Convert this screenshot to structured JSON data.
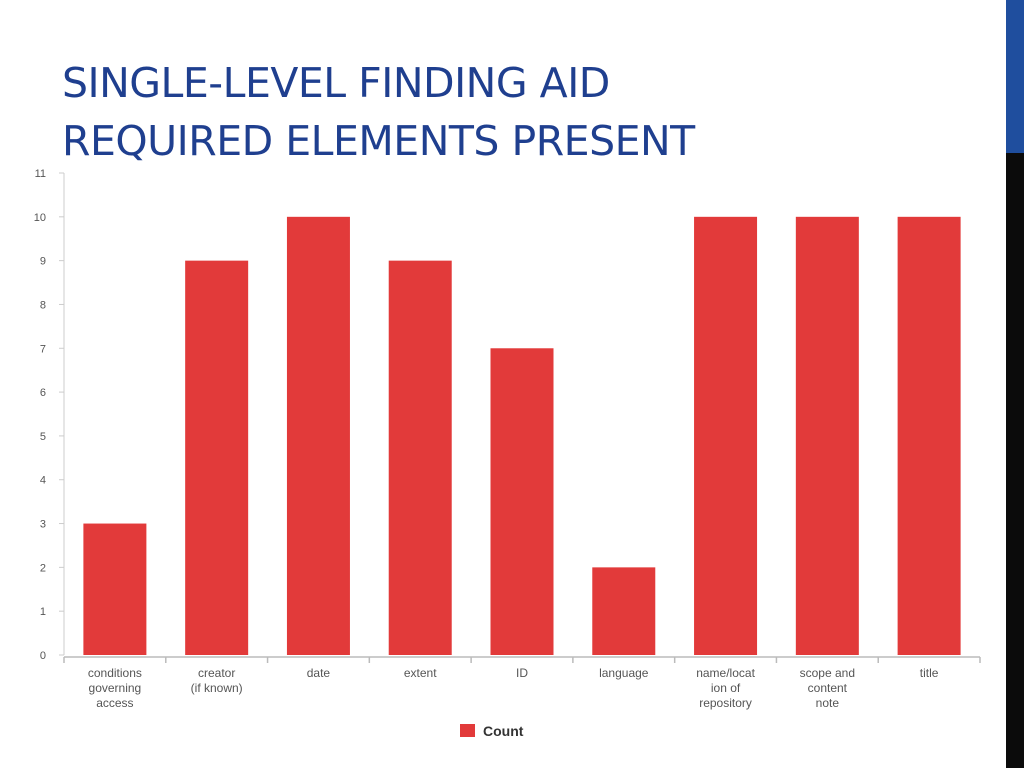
{
  "slide": {
    "title_lines": [
      "SINGLE-LEVEL FINDING AID",
      "REQUIRED ELEMENTS PRESENT"
    ],
    "title_color": "#1f3f8f",
    "sidebar_colors": {
      "top": "#1f4e9e",
      "bottom": "#0b0b0b"
    }
  },
  "chart_data": {
    "type": "bar",
    "categories": [
      [
        "conditions",
        "governing",
        "access"
      ],
      [
        "creator",
        "(if known)"
      ],
      [
        "date"
      ],
      [
        "extent"
      ],
      [
        "ID"
      ],
      [
        "language"
      ],
      [
        "name/locat",
        "ion of",
        "repository"
      ],
      [
        "scope and",
        "content",
        "note"
      ],
      [
        "title"
      ]
    ],
    "series": [
      {
        "name": "Count",
        "color": "#e23a3a",
        "values": [
          3,
          9,
          10,
          9,
          7,
          2,
          10,
          10,
          10
        ]
      }
    ],
    "ylim": [
      0,
      11
    ],
    "yticks": [
      0,
      1,
      2,
      3,
      4,
      5,
      6,
      7,
      8,
      9,
      10,
      11
    ],
    "grid": false,
    "legend_position": "bottom-center",
    "xlabel": "",
    "ylabel": ""
  }
}
